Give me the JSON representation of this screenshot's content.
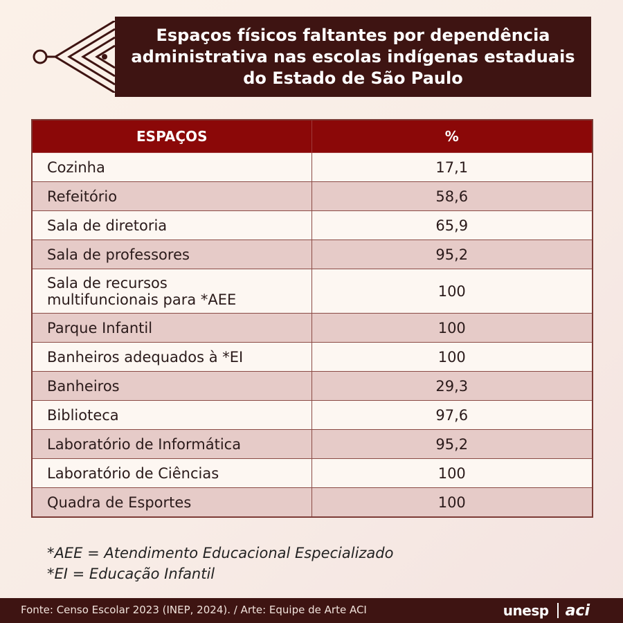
{
  "title": "Espaços físicos faltantes por dependência administrativa nas escolas indígenas estaduais do Estado de São Paulo",
  "chart_data": {
    "type": "table",
    "columns": [
      "ESPAÇOS",
      "%"
    ],
    "rows": [
      {
        "space": "Cozinha",
        "percent": "17,1"
      },
      {
        "space": "Refeitório",
        "percent": "58,6"
      },
      {
        "space": "Sala de diretoria",
        "percent": "65,9"
      },
      {
        "space": "Sala de professores",
        "percent": "95,2"
      },
      {
        "space": "Sala de recursos multifuncionais para *AEE",
        "percent": "100"
      },
      {
        "space": "Parque Infantil",
        "percent": "100"
      },
      {
        "space": "Banheiros adequados à *EI",
        "percent": "100"
      },
      {
        "space": "Banheiros",
        "percent": "29,3"
      },
      {
        "space": "Biblioteca",
        "percent": "97,6"
      },
      {
        "space": "Laboratório de Informática",
        "percent": "95,2"
      },
      {
        "space": "Laboratório de Ciências",
        "percent": "100"
      },
      {
        "space": "Quadra de Esportes",
        "percent": "100"
      }
    ]
  },
  "notes": [
    "*AEE = Atendimento Educacional Especializado",
    "*EI = Educação Infantil"
  ],
  "footer": {
    "source": "Fonte: Censo Escolar 2023 (INEP, 2024). / Arte: Equipe de Arte ACI",
    "logo_unesp": "unesp",
    "logo_aci": "aci"
  },
  "colors": {
    "banner": "#3e1412",
    "header": "#8b0808",
    "row_light": "#fdf7f2",
    "row_shaded": "#e6cbc8"
  }
}
